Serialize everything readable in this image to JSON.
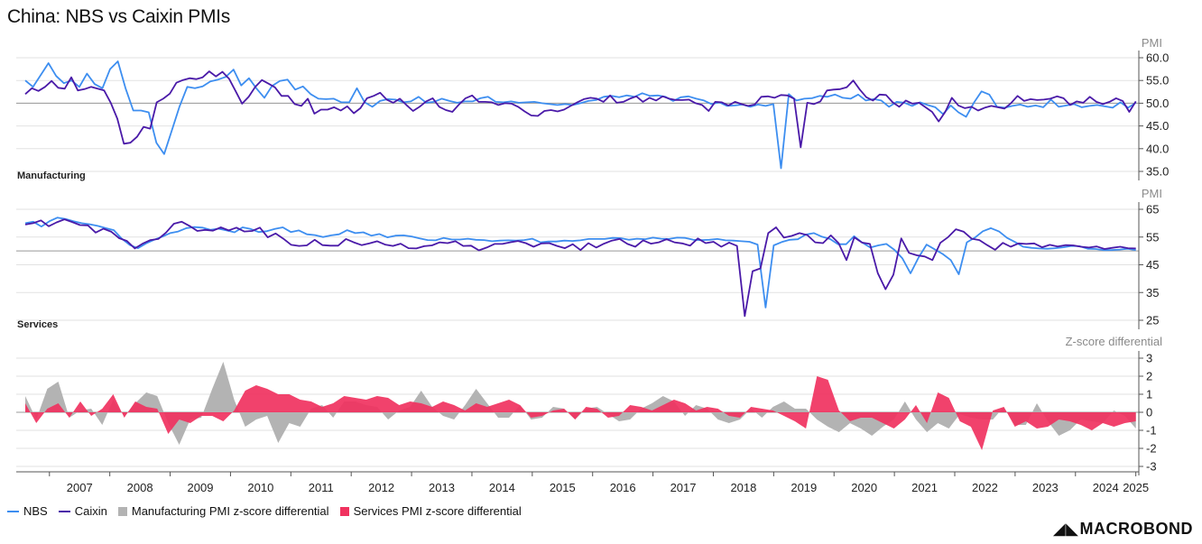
{
  "title": "China: NBS vs Caixin PMIs",
  "brand": "MACROBOND",
  "legend": [
    {
      "label": "NBS",
      "kind": "line",
      "color": "#3d8ef0"
    },
    {
      "label": "Caixin",
      "kind": "line",
      "color": "#4a1aa8"
    },
    {
      "label": "Manufacturing PMI z-score differential",
      "kind": "area",
      "color": "#b3b3b3"
    },
    {
      "label": "Services PMI z-score differential",
      "kind": "area",
      "color": "#f0325f"
    }
  ],
  "colors": {
    "nbs": "#3d8ef0",
    "caixin": "#4a1aa8",
    "mfg_diff": "#b3b3b3",
    "svc_diff": "#f0325f",
    "grid": "#e2e2e2"
  },
  "chart_data": [
    {
      "type": "line",
      "panel_label": "Manufacturing",
      "unit": "PMI",
      "ylim": [
        33,
        61
      ],
      "yticks": [
        "60.0",
        "55.0",
        "50.0",
        "45.0",
        "40.0",
        "35.0"
      ],
      "x_start": 2006.6,
      "x_step": 0.25,
      "series": [
        {
          "name": "NBS",
          "values": [
            55.0,
            53.6,
            56.2,
            58.8,
            56.0,
            54.4,
            55.0,
            53.6,
            56.5,
            54.2,
            53.3,
            57.5,
            59.2,
            53.3,
            48.4,
            48.4,
            48.0,
            41.3,
            38.8,
            44.0,
            49.3,
            53.6,
            53.3,
            53.7,
            54.8,
            55.2,
            55.8,
            57.4,
            53.9,
            55.5,
            53.2,
            51.2,
            53.8,
            54.9,
            55.2,
            53.0,
            53.7,
            52.0,
            51.0,
            50.9,
            51.0,
            50.2,
            50.2,
            53.3,
            50.2,
            49.2,
            50.5,
            50.9,
            50.8,
            50.2,
            50.4,
            51.4,
            50.1,
            50.3,
            51.0,
            50.5,
            50.1,
            50.4,
            50.4,
            51.1,
            51.4,
            50.3,
            50.2,
            50.4,
            50.1,
            50.2,
            50.3,
            50.0,
            49.8,
            49.6,
            49.8,
            49.6,
            50.0,
            50.5,
            50.7,
            51.4,
            51.6,
            51.3,
            51.7,
            51.4,
            52.2,
            51.6,
            51.7,
            51.4,
            50.5,
            51.3,
            51.5,
            51.0,
            50.6,
            49.8,
            50.2,
            49.4,
            49.5,
            49.7,
            49.2,
            49.7,
            49.4,
            49.8,
            35.7,
            52.0,
            50.6,
            51.0,
            51.1,
            51.6,
            51.4,
            51.9,
            51.2,
            51.0,
            51.9,
            50.6,
            50.9,
            50.6,
            49.2,
            50.3,
            50.1,
            49.4,
            50.2,
            49.6,
            49.1,
            47.6,
            49.5,
            48.0,
            47.0,
            50.1,
            52.6,
            51.9,
            49.2,
            49.0,
            49.4,
            49.7,
            49.2,
            49.5,
            49.1,
            50.8,
            49.2,
            49.5,
            49.8,
            49.1,
            49.4,
            49.6,
            49.3,
            49.0,
            50.2,
            49.0,
            50.1
          ]
        },
        {
          "name": "Caixin",
          "values": [
            52.0,
            53.3,
            52.7,
            53.6,
            54.9,
            53.4,
            53.2,
            55.7,
            52.8,
            53.1,
            53.6,
            53.2,
            52.8,
            50.1,
            46.6,
            41.1,
            41.3,
            42.6,
            44.8,
            44.4,
            50.2,
            51.0,
            52.1,
            54.5,
            55.1,
            55.5,
            55.3,
            55.7,
            57.0,
            55.9,
            56.9,
            55.4,
            52.7,
            49.9,
            51.4,
            53.6,
            55.1,
            54.3,
            53.5,
            51.6,
            51.6,
            49.8,
            49.4,
            51.0,
            47.7,
            48.6,
            48.6,
            49.1,
            48.4,
            49.3,
            47.8,
            48.9,
            51.1,
            51.6,
            52.3,
            50.8,
            50.1,
            51.0,
            49.6,
            48.3,
            49.2,
            50.4,
            51.1,
            49.2,
            48.5,
            48.1,
            49.7,
            51.1,
            51.7,
            50.3,
            50.3,
            50.2,
            49.6,
            50.0,
            49.9,
            49.2,
            48.2,
            47.3,
            47.2,
            48.3,
            48.5,
            48.2,
            48.6,
            49.4,
            50.2,
            50.9,
            51.2,
            51.0,
            50.3,
            51.7,
            50.1,
            50.3,
            51.0,
            51.5,
            50.3,
            51.2,
            50.6,
            51.5,
            51.0,
            50.7,
            50.7,
            50.8,
            50.0,
            49.6,
            48.3,
            50.3,
            50.2,
            49.5,
            50.3,
            49.8,
            49.4,
            49.7,
            51.4,
            51.5,
            51.2,
            51.8,
            51.7,
            51.0,
            40.3,
            50.1,
            49.8,
            50.4,
            52.8,
            53.0,
            53.1,
            53.5,
            55.0,
            53.0,
            51.3,
            50.6,
            51.9,
            51.8,
            50.2,
            49.2,
            50.6,
            49.9,
            50.1,
            49.1,
            48.1,
            46.0,
            48.1,
            51.2,
            49.5,
            48.9,
            49.2,
            48.4,
            49.0,
            49.4,
            49.1,
            48.8,
            50.0,
            51.6,
            50.5,
            50.9,
            50.7,
            50.8,
            51.0,
            51.5,
            51.1,
            49.6,
            50.4,
            50.1,
            51.4,
            50.3,
            49.8,
            50.3,
            51.1,
            50.5,
            48.1,
            50.4
          ]
        }
      ]
    },
    {
      "type": "line",
      "panel_label": "Services",
      "unit": "PMI",
      "ylim": [
        23,
        68
      ],
      "yticks": [
        "65",
        "55",
        "45",
        "35",
        "25"
      ],
      "x_start": 2006.6,
      "x_step": 0.25,
      "series": [
        {
          "name": "NBS",
          "values": [
            60.0,
            60.5,
            58.8,
            60.7,
            62.0,
            61.5,
            60.7,
            60.0,
            59.6,
            59.0,
            58.2,
            57.5,
            54.4,
            52.1,
            51.0,
            52.7,
            54.0,
            55.1,
            56.4,
            57.0,
            58.2,
            58.6,
            58.4,
            57.6,
            58.0,
            57.4,
            56.7,
            58.5,
            57.9,
            56.8,
            57.1,
            57.9,
            58.5,
            56.8,
            57.4,
            56.0,
            55.7,
            55.0,
            55.6,
            56.0,
            57.5,
            56.4,
            56.7,
            55.5,
            56.1,
            54.9,
            55.5,
            55.6,
            55.2,
            54.5,
            53.9,
            53.8,
            54.7,
            54.1,
            54.1,
            54.4,
            54.0,
            53.9,
            53.5,
            53.7,
            53.8,
            53.7,
            53.9,
            54.4,
            53.1,
            53.4,
            53.4,
            53.7,
            53.6,
            53.8,
            54.3,
            54.3,
            54.3,
            54.7,
            54.6,
            54.0,
            54.4,
            54.2,
            54.8,
            54.4,
            54.3,
            54.8,
            54.7,
            54.0,
            53.9,
            54.0,
            54.3,
            53.8,
            53.7,
            53.5,
            53.3,
            52.3,
            29.6,
            52.0,
            53.2,
            54.0,
            54.2,
            55.9,
            56.4,
            55.1,
            54.3,
            52.4,
            52.4,
            55.3,
            53.0,
            51.2,
            52.0,
            52.5,
            50.4,
            47.3,
            41.9,
            47.6,
            52.3,
            50.6,
            48.9,
            46.7,
            41.6,
            53.1,
            54.8,
            57.1,
            58.2,
            57.0,
            54.7,
            53.2,
            51.5,
            51.1,
            50.9,
            50.8,
            51.0,
            51.3,
            51.8,
            51.7,
            50.8,
            50.7,
            50.3,
            50.3,
            50.5,
            50.8,
            50.3
          ]
        },
        {
          "name": "Caixin",
          "values": [
            59.5,
            60.0,
            61.0,
            58.9,
            60.3,
            61.4,
            60.4,
            59.3,
            59.2,
            56.6,
            58.0,
            56.9,
            54.6,
            53.6,
            50.9,
            52.6,
            53.9,
            54.3,
            56.6,
            59.8,
            60.5,
            59.0,
            57.2,
            57.6,
            57.3,
            58.5,
            57.4,
            58.4,
            57.0,
            57.2,
            58.4,
            54.9,
            56.3,
            54.4,
            52.2,
            51.8,
            52.0,
            54.0,
            52.1,
            51.9,
            51.9,
            54.3,
            53.1,
            52.1,
            52.7,
            53.5,
            52.3,
            51.8,
            52.6,
            51.0,
            50.9,
            51.7,
            52.0,
            53.1,
            52.8,
            53.5,
            51.8,
            51.9,
            50.2,
            51.2,
            52.5,
            52.5,
            53.1,
            53.6,
            52.8,
            51.5,
            52.7,
            52.8,
            51.8,
            51.0,
            52.4,
            50.3,
            52.8,
            51.2,
            52.6,
            53.7,
            54.3,
            52.5,
            51.5,
            53.8,
            52.6,
            53.1,
            54.2,
            53.1,
            52.7,
            51.9,
            54.5,
            52.8,
            53.3,
            51.5,
            53.0,
            51.8,
            26.5,
            42.7,
            43.7,
            56.4,
            58.5,
            54.8,
            55.4,
            56.4,
            55.7,
            53.1,
            52.8,
            55.6,
            52.8,
            46.7,
            54.9,
            53.0,
            52.5,
            42.0,
            36.2,
            41.4,
            54.5,
            49.3,
            48.4,
            48.0,
            46.7,
            52.9,
            55.0,
            57.8,
            56.9,
            54.4,
            53.9,
            52.1,
            50.4,
            52.9,
            51.5,
            52.7,
            52.5,
            52.7,
            51.3,
            52.2,
            51.6,
            52.1,
            52.0,
            51.5,
            51.2,
            51.6,
            50.7,
            51.1,
            51.5,
            51.0,
            50.9
          ]
        }
      ]
    },
    {
      "type": "area",
      "panel_label": "",
      "unit": "Z-score differential",
      "ylim": [
        -3.3,
        3.4
      ],
      "yticks": [
        "3",
        "2",
        "1",
        "0",
        "-1",
        "-2",
        "-3"
      ],
      "x_start": 2006.6,
      "x_step": 0.25,
      "series": [
        {
          "name": "Manufacturing PMI z-score differential",
          "values": [
            0.9,
            -0.4,
            1.3,
            1.7,
            -0.3,
            0.1,
            0.2,
            -0.7,
            0.7,
            -0.2,
            0.5,
            1.1,
            0.9,
            -0.6,
            -1.8,
            -0.4,
            -0.3,
            1.3,
            2.8,
            0.7,
            -0.8,
            -0.4,
            -0.2,
            -1.7,
            -0.6,
            -0.8,
            0.2,
            0.4,
            -0.3,
            0.6,
            0.6,
            0.4,
            0.3,
            -0.4,
            0.1,
            0.3,
            1.2,
            0.3,
            -0.2,
            -0.4,
            0.4,
            1.3,
            0.5,
            -0.3,
            -0.3,
            0.4,
            -0.4,
            -0.3,
            0.3,
            0.2,
            -0.4,
            0.2,
            0.3,
            -0.1,
            -0.5,
            -0.4,
            0.2,
            0.5,
            0.9,
            0.6,
            -0.2,
            0.4,
            0.2,
            -0.4,
            -0.6,
            -0.4,
            0.2,
            -0.3,
            0.3,
            0.6,
            0.2,
            0.2,
            -0.4,
            -0.8,
            -1.1,
            -0.6,
            -0.9,
            -1.3,
            -0.8,
            -0.4,
            0.6,
            -0.4,
            -1.1,
            -0.6,
            -0.9,
            -0.1,
            -0.3,
            -0.4,
            -0.4,
            0.3,
            -0.7,
            -0.7,
            0.5,
            -0.5,
            -1.3,
            -1.0,
            -0.4,
            -0.5,
            -0.6,
            0.1,
            -0.2,
            -0.9
          ]
        },
        {
          "name": "Services PMI z-score differential",
          "values": [
            0.5,
            -0.6,
            0.2,
            0.5,
            -0.3,
            0.6,
            -0.2,
            0.2,
            1.0,
            -0.3,
            0.6,
            0.3,
            0.2,
            -1.2,
            -0.4,
            -0.6,
            -0.2,
            -0.2,
            -0.5,
            0.1,
            1.2,
            1.5,
            1.3,
            1.0,
            1.0,
            0.7,
            0.6,
            0.3,
            0.5,
            0.9,
            0.8,
            0.7,
            0.9,
            0.8,
            0.4,
            0.6,
            0.5,
            0.3,
            0.6,
            0.4,
            0.1,
            0.5,
            0.3,
            0.5,
            0.7,
            0.4,
            -0.3,
            -0.2,
            0.1,
            0.2,
            -0.4,
            0.3,
            0.2,
            -0.3,
            -0.2,
            0.4,
            0.3,
            0.1,
            0.4,
            0.7,
            0.5,
            0.1,
            0.3,
            0.2,
            -0.2,
            -0.3,
            0.3,
            0.2,
            0.1,
            -0.2,
            -0.5,
            -0.9,
            2.0,
            1.8,
            0.1,
            -0.5,
            -0.3,
            -0.3,
            -0.6,
            -0.9,
            -0.4,
            0.4,
            -0.6,
            1.1,
            0.8,
            -0.5,
            -0.8,
            -2.1,
            0.1,
            0.3,
            -0.8,
            -0.5,
            -0.9,
            -0.8,
            -0.4,
            -0.5,
            -0.7,
            -1.0,
            -0.6,
            -0.8,
            -0.6,
            -0.5
          ]
        }
      ]
    }
  ],
  "x_axis": {
    "ticks": [
      "2007",
      "2008",
      "2009",
      "2010",
      "2011",
      "2012",
      "2013",
      "2014",
      "2015",
      "2016",
      "2017",
      "2018",
      "2019",
      "2020",
      "2021",
      "2022",
      "2023",
      "2024",
      "2025"
    ]
  }
}
